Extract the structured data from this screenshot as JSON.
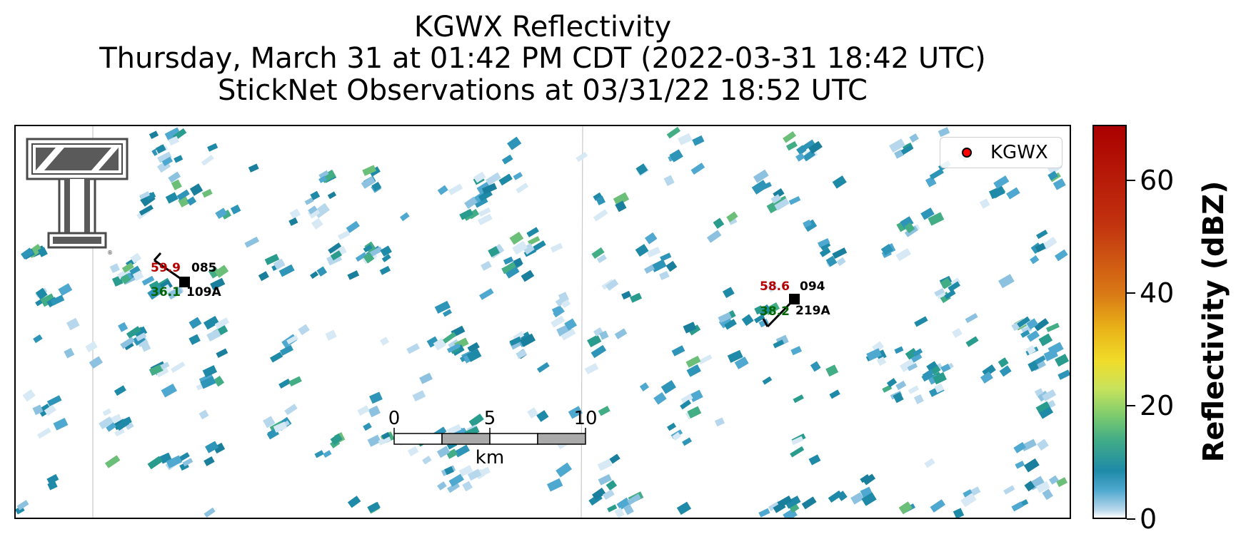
{
  "title": {
    "line1": "KGWX Reflectivity",
    "line2": "Thursday, March 31 at 01:42 PM CDT (2022-03-31 18:42 UTC)",
    "line3": "StickNet Observations at 03/31/22 18:52 UTC"
  },
  "legend": {
    "label": "KGWX",
    "marker_color": "#ff0000"
  },
  "stations": [
    {
      "temp": "59.9",
      "dew": "36.1",
      "wind_dir": "085",
      "id": "109A"
    },
    {
      "temp": "58.6",
      "dew": "38.2",
      "wind_dir": "094",
      "id": "219A"
    }
  ],
  "scale_bar": {
    "ticks": [
      "0",
      "5",
      "10"
    ],
    "unit": "km"
  },
  "colorbar": {
    "label": "Reflectivity (dBZ)",
    "ticks": [
      "0",
      "20",
      "40",
      "60"
    ],
    "range": [
      0,
      70
    ]
  },
  "colors": {
    "temp": "#b30000",
    "dew": "#006400",
    "radar_teal": "#1f8aa8",
    "radar_green": "#43ad85"
  },
  "logo": {
    "name": "texas-tech-double-t-logo",
    "mark": "®"
  }
}
